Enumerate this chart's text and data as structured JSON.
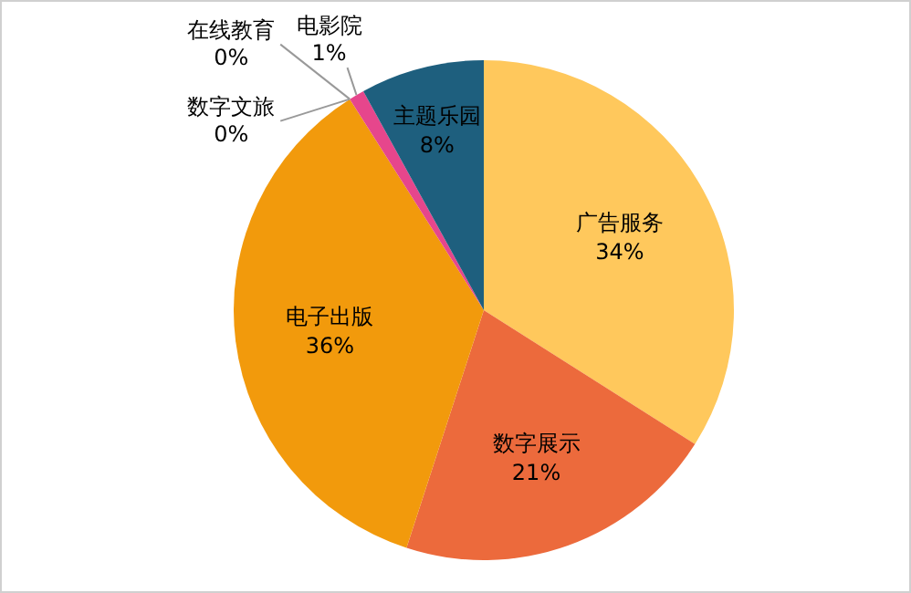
{
  "chart_data": {
    "type": "pie",
    "categories": [
      "广告服务",
      "数字展示",
      "电子出版",
      "数字文旅",
      "在线教育",
      "电影院",
      "主题乐园"
    ],
    "values": [
      34,
      21,
      36,
      0,
      0,
      1,
      8
    ],
    "colors": [
      "#ffc85c",
      "#ec6a3c",
      "#f29a0c",
      "#4a90d0",
      "#a0a0a0",
      "#e6468c",
      "#1e5f7e"
    ],
    "value_labels": [
      "34%",
      "21%",
      "36%",
      "0%",
      "0%",
      "1%",
      "8%"
    ]
  }
}
